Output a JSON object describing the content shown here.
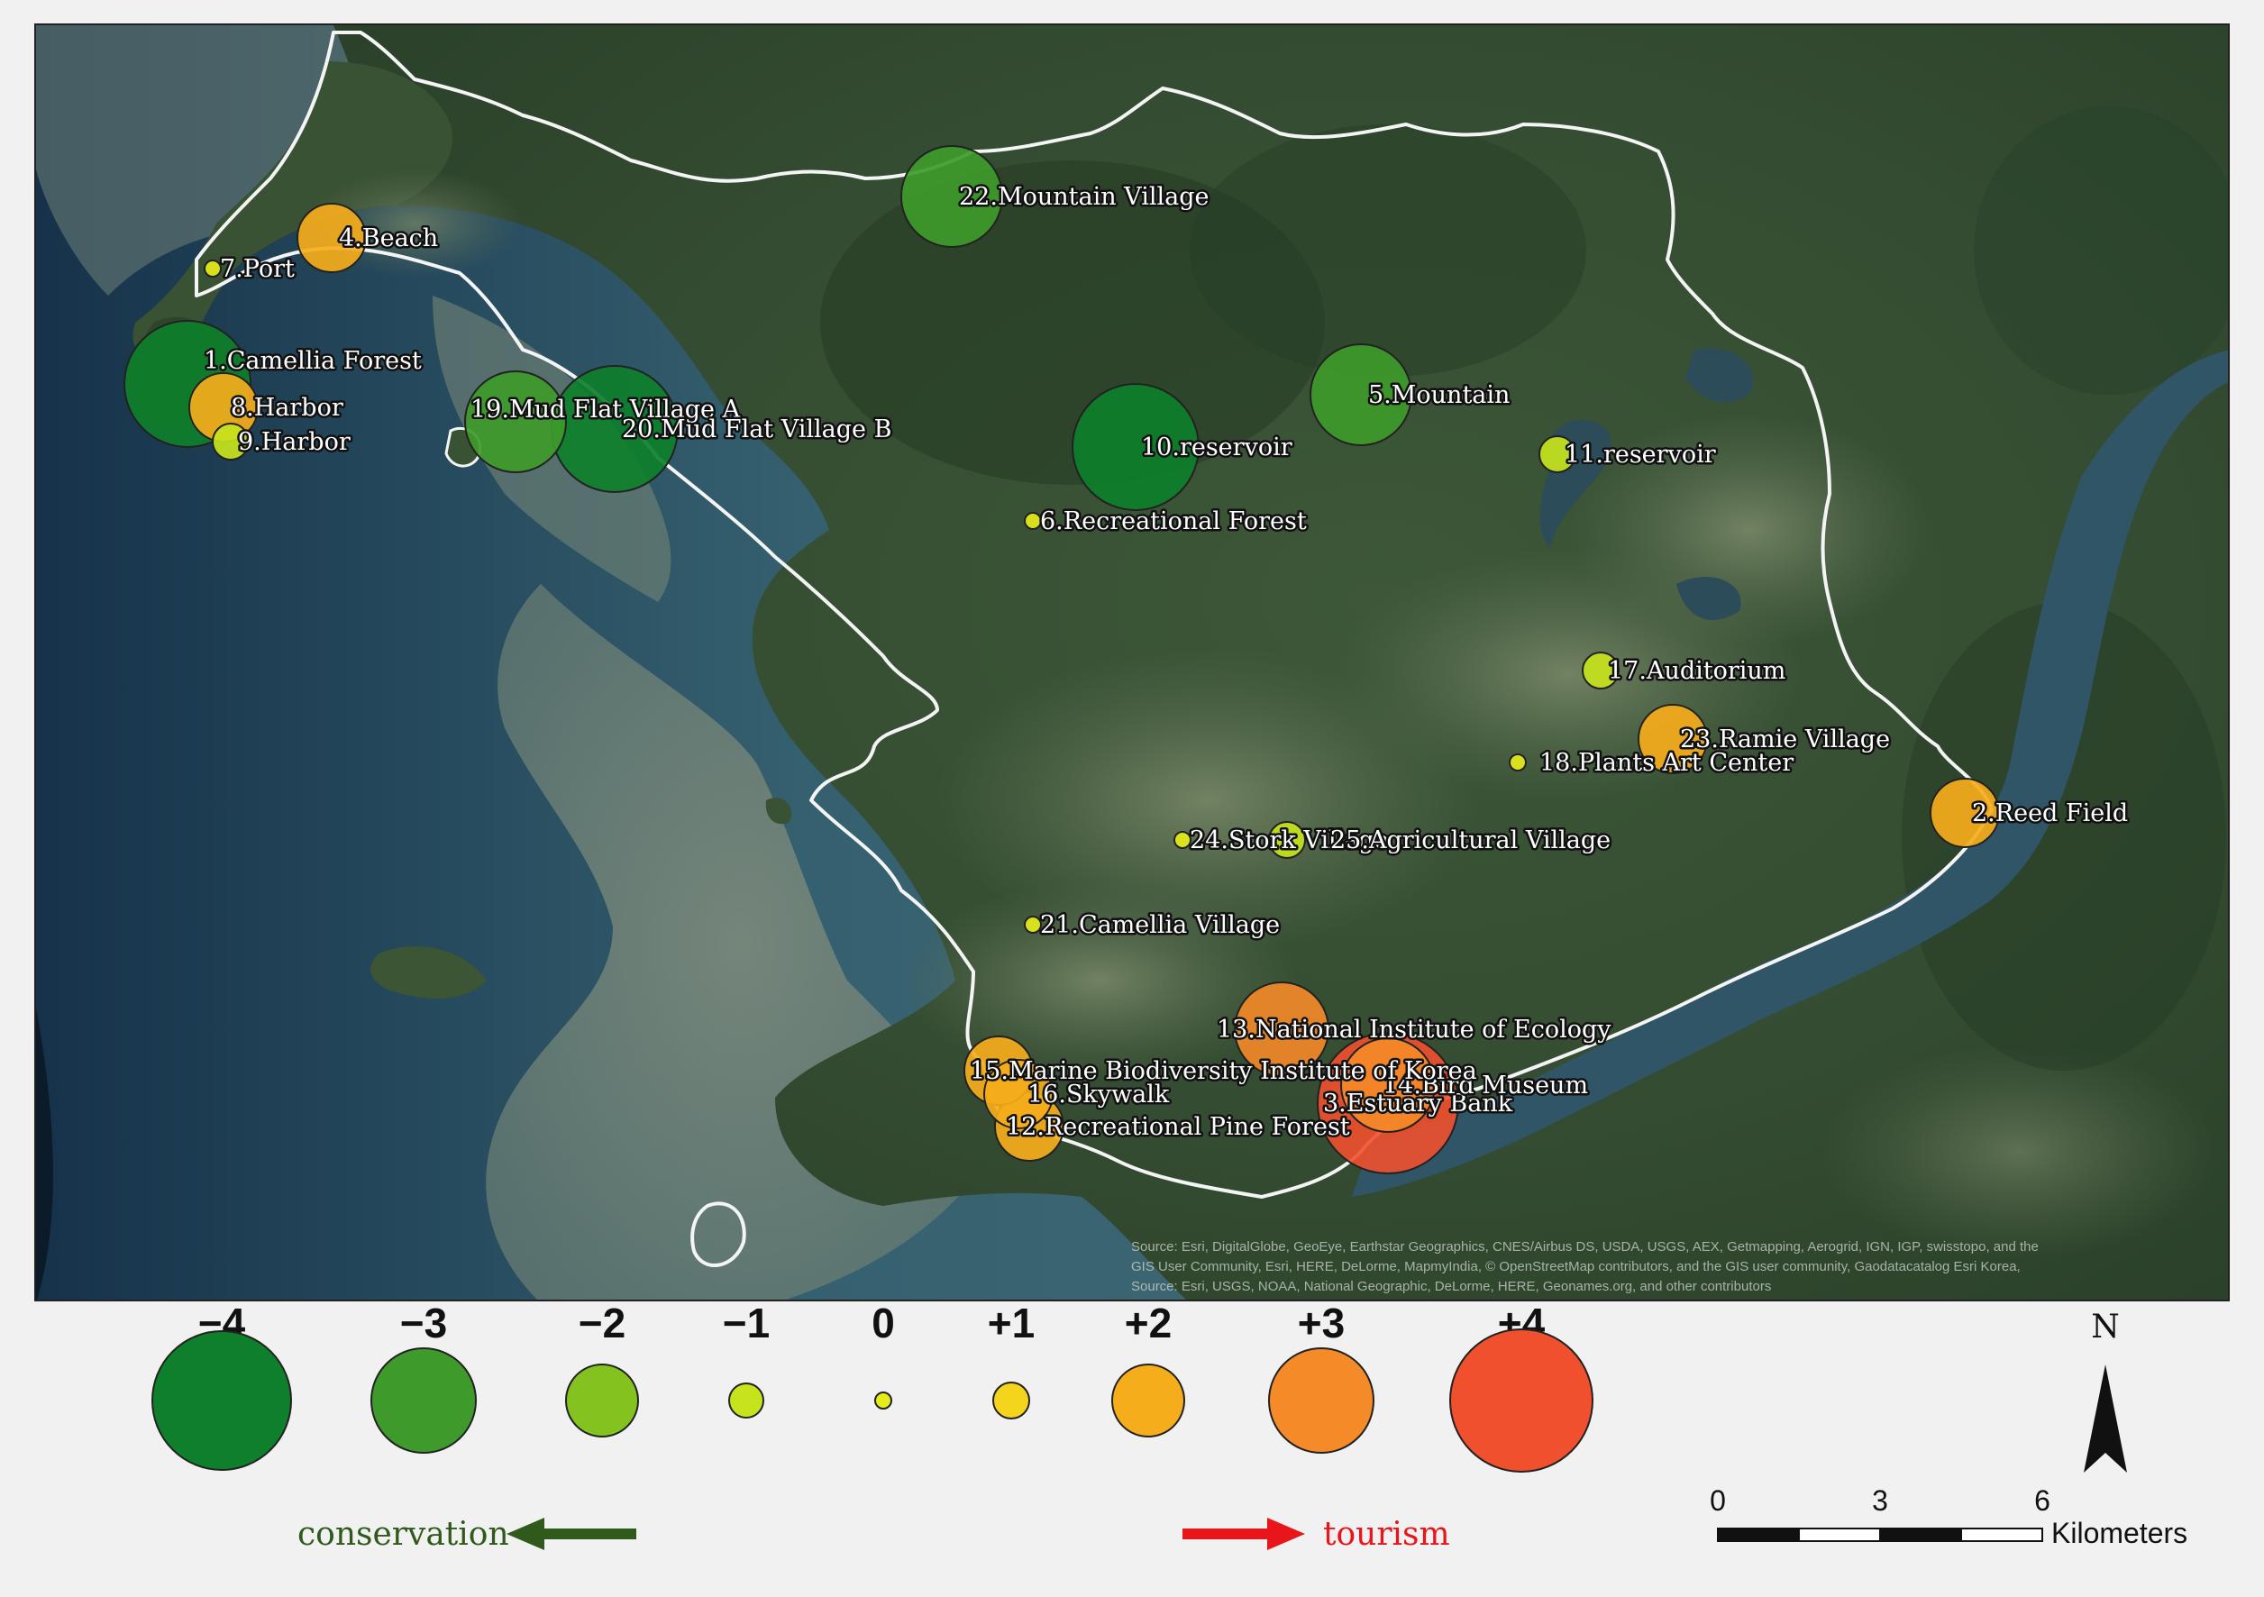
{
  "sites": [
    {
      "id": "1",
      "label": "1.Camellia Forest",
      "score": -4
    },
    {
      "id": "2",
      "label": "2.Reed Field",
      "score": 2
    },
    {
      "id": "3",
      "label": "3.Estuary Bank",
      "score": 4
    },
    {
      "id": "4",
      "label": "4.Beach",
      "score": 2
    },
    {
      "id": "5",
      "label": "5.Mountain",
      "score": -3
    },
    {
      "id": "6",
      "label": "6.Recreational Forest",
      "score": 0
    },
    {
      "id": "7",
      "label": "7.Port",
      "score": 0
    },
    {
      "id": "8",
      "label": "8.Harbor",
      "score": 2
    },
    {
      "id": "9",
      "label": "9.Harbor",
      "score": -1
    },
    {
      "id": "10",
      "label": "10.reservoir",
      "score": -4
    },
    {
      "id": "11",
      "label": "11.reservoir",
      "score": -1
    },
    {
      "id": "12",
      "label": "12.Recreational Pine Forest",
      "score": 2
    },
    {
      "id": "13",
      "label": "13.National Institute of Ecology",
      "score": 3
    },
    {
      "id": "14",
      "label": "14.Bird Museum",
      "score": 3
    },
    {
      "id": "15",
      "label": "15.Marine Biodiversity Institute of Korea",
      "score": 2
    },
    {
      "id": "16",
      "label": "16.Skywalk",
      "score": 2
    },
    {
      "id": "17",
      "label": "17.Auditorium",
      "score": -1
    },
    {
      "id": "18",
      "label": "18.Plants Art Center",
      "score": 0
    },
    {
      "id": "19",
      "label": "19.Mud Flat Village A",
      "score": -3
    },
    {
      "id": "20",
      "label": "20.Mud Flat Village B",
      "score": -4
    },
    {
      "id": "21",
      "label": "21.Camellia Village",
      "score": 0
    },
    {
      "id": "22",
      "label": "22.Mountain Village",
      "score": -3
    },
    {
      "id": "23",
      "label": "23.Ramie Village",
      "score": 2
    },
    {
      "id": "24",
      "label": "24.Stork Village",
      "score": 0
    },
    {
      "id": "25",
      "label": "25.Agricultural Village",
      "score": -1
    }
  ],
  "legend": {
    "values": [
      "−4",
      "−3",
      "−2",
      "−1",
      "0",
      "+1",
      "+2",
      "+3",
      "+4"
    ],
    "colors": [
      "#0e7f2b",
      "#3e9a2a",
      "#84c21f",
      "#c7e31c",
      "#e6ec1a",
      "#f5d51c",
      "#f5ad1b",
      "#f58a28",
      "#f0502e"
    ],
    "conservation_label": "conservation",
    "tourism_label": "tourism",
    "conservation_color": "#2f5a1c",
    "tourism_color": "#e8151b"
  },
  "scale_bar": {
    "ticks": [
      "0",
      "3",
      "6"
    ],
    "unit": "Kilometers"
  },
  "north_arrow": {
    "label": "N"
  },
  "attribution": [
    "Source: Esri, DigitalGlobe, GeoEye, Earthstar Geographics, CNES/Airbus DS, USDA, USGS, AEX, Getmapping, Aerogrid, IGN, IGP, swisstopo, and the",
    "GIS User Community, Esri, HERE, DeLorme, MapmyIndia, © OpenStreetMap contributors, and the GIS user community, Gaodatacatalog Esri Korea,",
    "Source: Esri, USGS, NOAA, National Geographic, DeLorme, HERE, Geonames.org, and other contributors"
  ],
  "colors": {
    "sea_dark": "#1d3f56",
    "sea": "#3c6777",
    "tidal_flat": "#6d8076",
    "land": "#334a2f",
    "farmland": "#5f7358",
    "river": "#2f5566",
    "boundary": "#f4f4f4"
  }
}
